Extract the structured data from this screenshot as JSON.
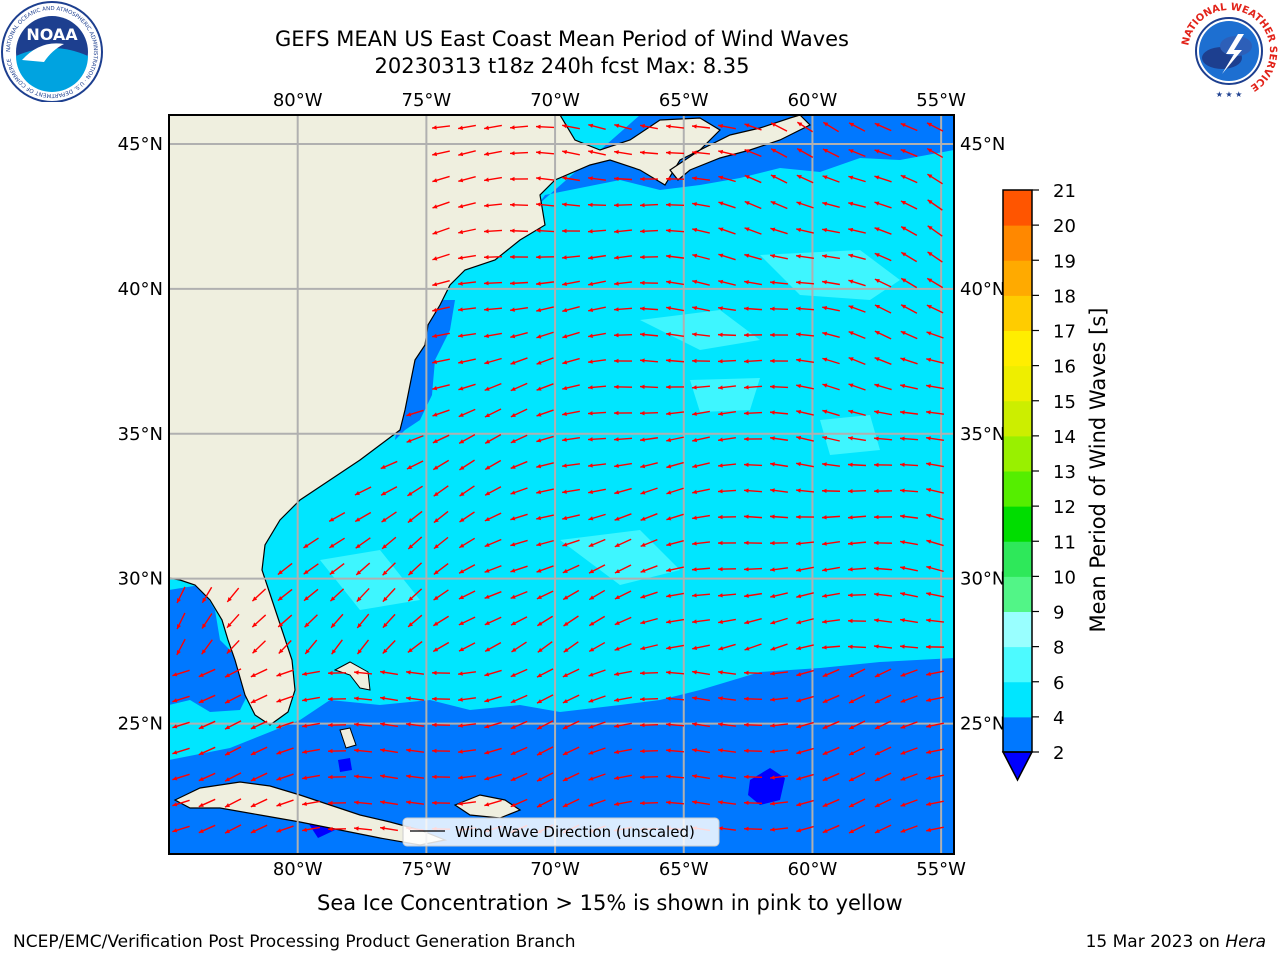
{
  "header": {
    "title": "GEFS MEAN US East Coast Mean Period of Wind Waves",
    "subtitle": "20230313 t18z 240h fcst   Max: 8.35"
  },
  "logos": {
    "left_name": "NOAA",
    "left_ring_text": "NATIONAL OCEANIC AND ATMOSPHERIC ADMINISTRATION · U.S. DEPARTMENT OF COMMERCE",
    "right_ring_text": "NATIONAL WEATHER SERVICE"
  },
  "map": {
    "lon_labels": [
      "80°W",
      "75°W",
      "70°W",
      "65°W",
      "60°W",
      "55°W"
    ],
    "lat_labels": [
      "45°N",
      "40°N",
      "35°N",
      "30°N",
      "25°N"
    ],
    "lon_range": [
      -85,
      -54.5
    ],
    "lat_range": [
      20.5,
      46
    ],
    "gridlines": true,
    "vector_field": "wind wave direction",
    "legend_label": "Wind Wave Direction (unscaled)"
  },
  "colorbar": {
    "label": "Mean Period of Wind Waves [s]",
    "ticks": [
      "2",
      "4",
      "6",
      "8",
      "9",
      "10",
      "11",
      "12",
      "13",
      "14",
      "15",
      "16",
      "17",
      "18",
      "19",
      "20",
      "21"
    ],
    "colors": [
      "#0078ff",
      "#00e6ff",
      "#4dfaff",
      "#99ffff",
      "#52f587",
      "#2ee85a",
      "#00dd00",
      "#55ee00",
      "#99f000",
      "#ccee00",
      "#eeee00",
      "#ffee00",
      "#ffcc00",
      "#ffaa00",
      "#ff8800",
      "#ff5500",
      "#ff2200",
      "#ff0000"
    ],
    "extend_color": "#0000ff"
  },
  "caption": "Sea Ice Concentration > 15% is shown in pink to yellow",
  "footer": {
    "left": "NCEP/EMC/Verification Post Processing Product Generation Branch",
    "date": "15 Mar 2023 on ",
    "machine": "Hera"
  },
  "colors": {
    "land": "#efefdf",
    "arrows": "#ff0000",
    "deep_blue": "#0078ff",
    "cyan": "#00e6ff",
    "light_cyan": "#4dfaff",
    "grid": "#b0b0b0"
  }
}
